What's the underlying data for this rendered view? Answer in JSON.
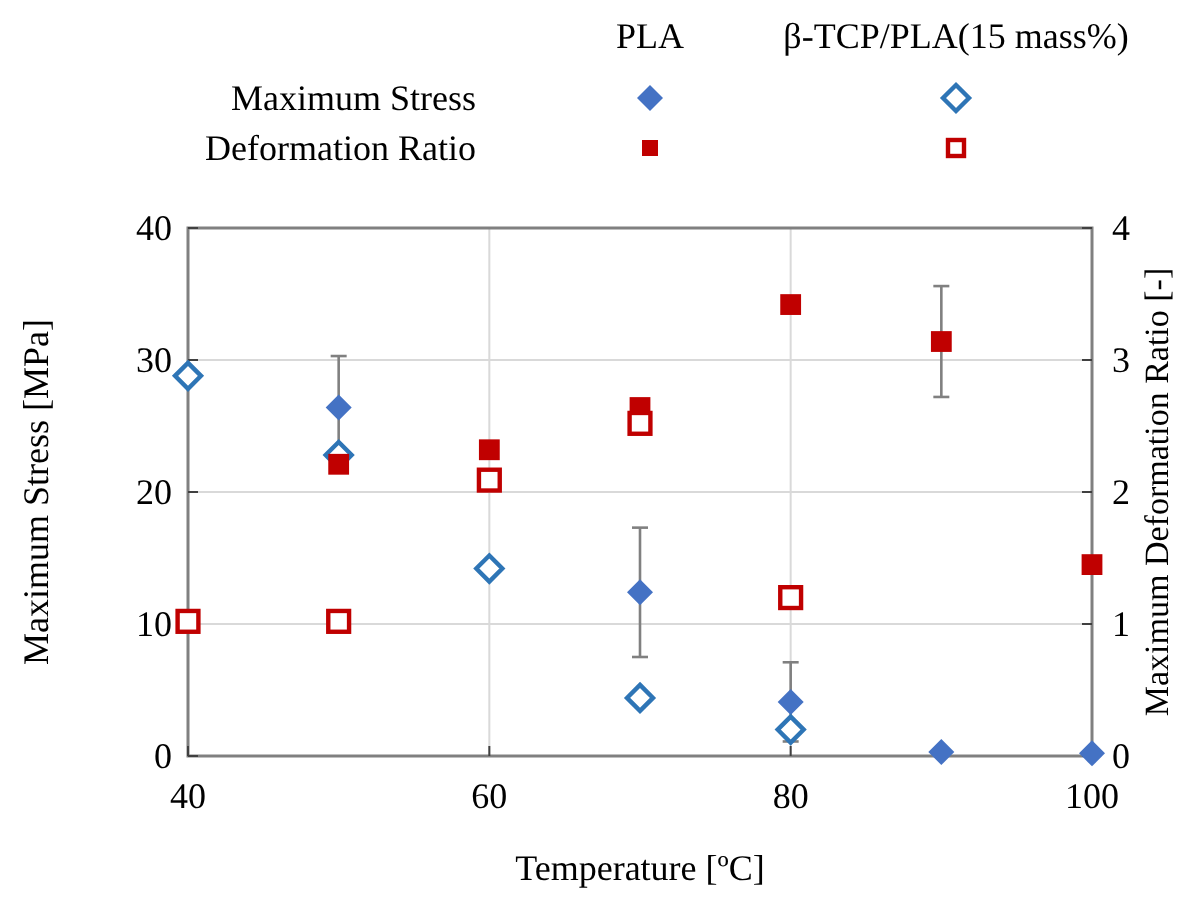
{
  "chart_data": {
    "type": "scatter",
    "xlabel": "Temperature [ºC]",
    "ylabel": "Maximum Stress [MPa]",
    "y2label": "Maximum Deformation Ratio [-]",
    "xlim": [
      40,
      100
    ],
    "xticks": [
      40,
      60,
      80,
      100
    ],
    "ylim": [
      0,
      40
    ],
    "yticks": [
      0,
      10,
      20,
      30,
      40
    ],
    "y2lim": [
      0,
      4
    ],
    "y2ticks": [
      0,
      1,
      2,
      3,
      4
    ],
    "grid": true,
    "annotations": [
      "PLA",
      "β-TCP/PLA(15 mass%)",
      "Maximum Stress",
      "Deformation Ratio"
    ],
    "series": [
      {
        "color": "#4472c4",
        "marker": "diamond",
        "x": [
          50,
          70,
          80,
          90,
          100
        ],
        "values": [
          26.4,
          12.4,
          4.1,
          0.3,
          0.2
        ],
        "errors": [
          3.9,
          4.9,
          3.0,
          null,
          null
        ]
      },
      {
        "color": "#2e75b6",
        "marker": "diamond",
        "x": [
          40,
          50,
          60,
          70,
          80
        ],
        "values": [
          28.8,
          22.8,
          14.2,
          4.4,
          2.0
        ]
      },
      {
        "color": "#c00000",
        "marker": "square",
        "axis": "y2",
        "x": [
          50,
          60,
          70,
          80,
          90,
          100
        ],
        "values": [
          2.21,
          2.32,
          2.64,
          3.42,
          3.14,
          1.45
        ],
        "errors": [
          null,
          null,
          null,
          null,
          0.42,
          null
        ]
      },
      {
        "color": "#c00000",
        "marker": "square",
        "axis": "y2",
        "x": [
          40,
          50,
          60,
          70,
          80
        ],
        "values": [
          1.02,
          1.02,
          2.09,
          2.52,
          1.2
        ]
      }
    ]
  }
}
